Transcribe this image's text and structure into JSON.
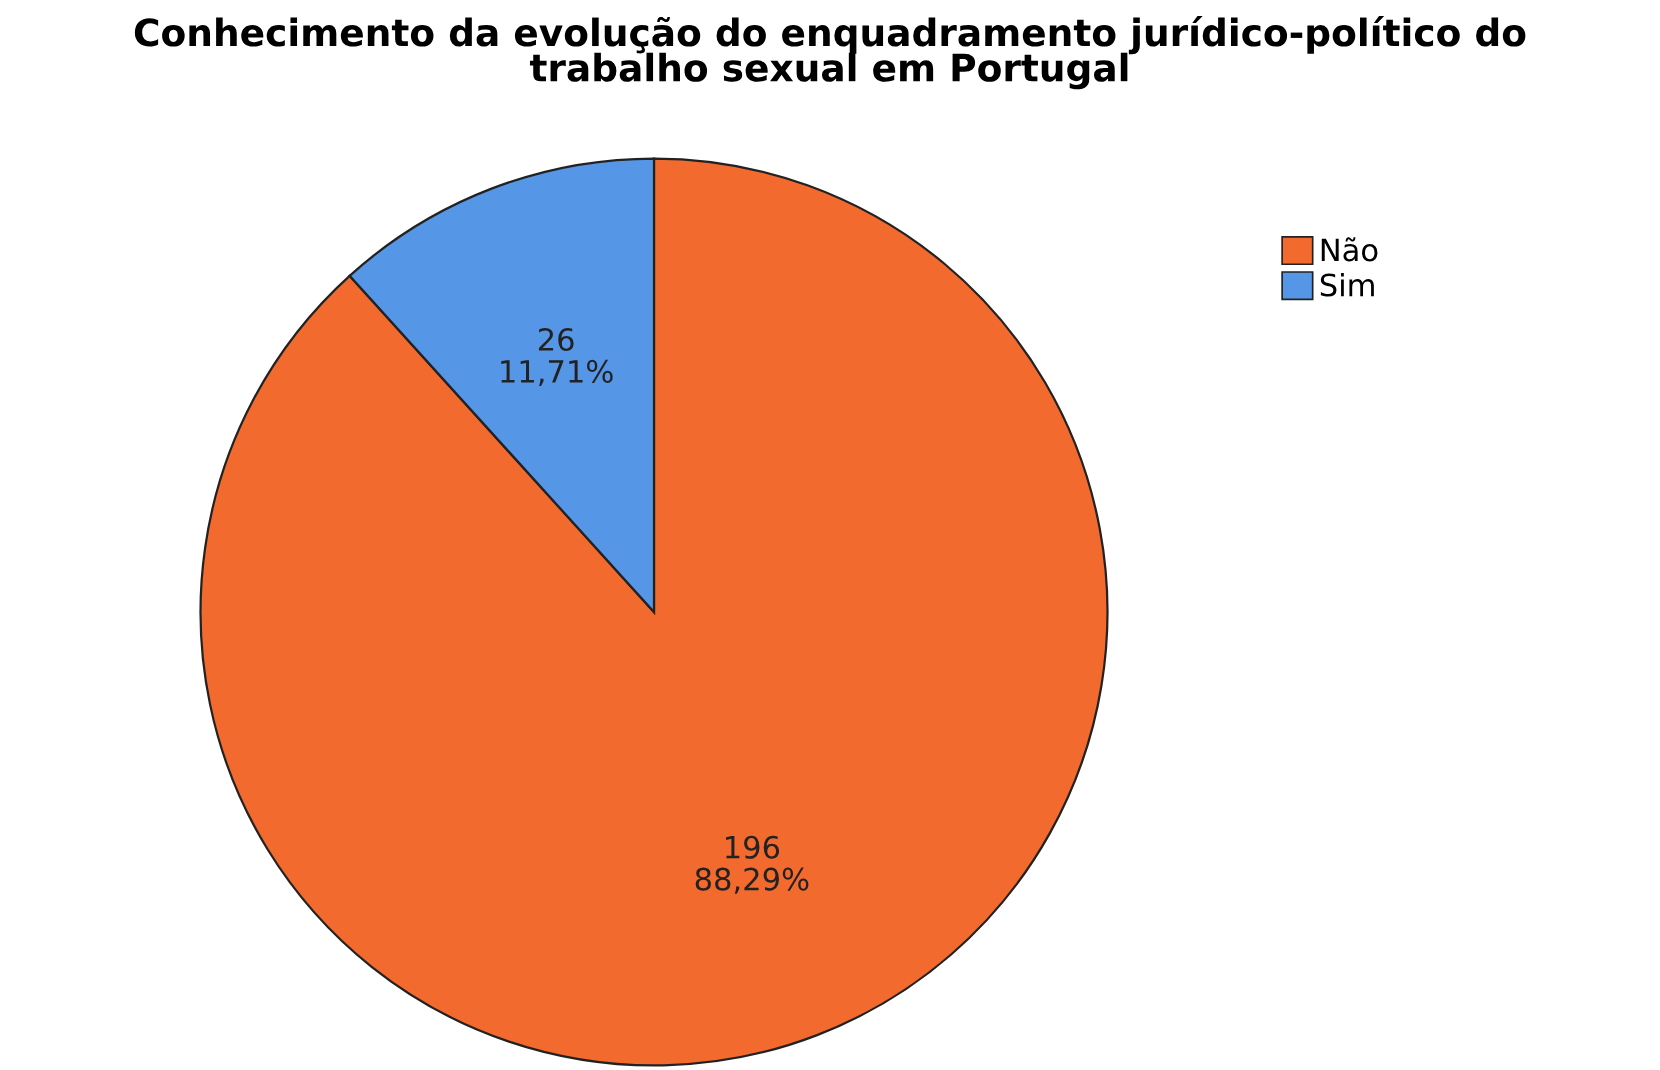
{
  "chart_data": {
    "type": "pie",
    "title": "Conhecimento da evolução do enquadramento jurídico-político do\ntrabalho sexual em Portugal",
    "categories": [
      "Não",
      "Sim"
    ],
    "values": [
      196,
      26
    ],
    "colors": [
      "#f26a2e",
      "#5596e6"
    ],
    "value_labels": [
      "196\n88,29%",
      "26\n11,71%"
    ],
    "legend": "top right"
  }
}
